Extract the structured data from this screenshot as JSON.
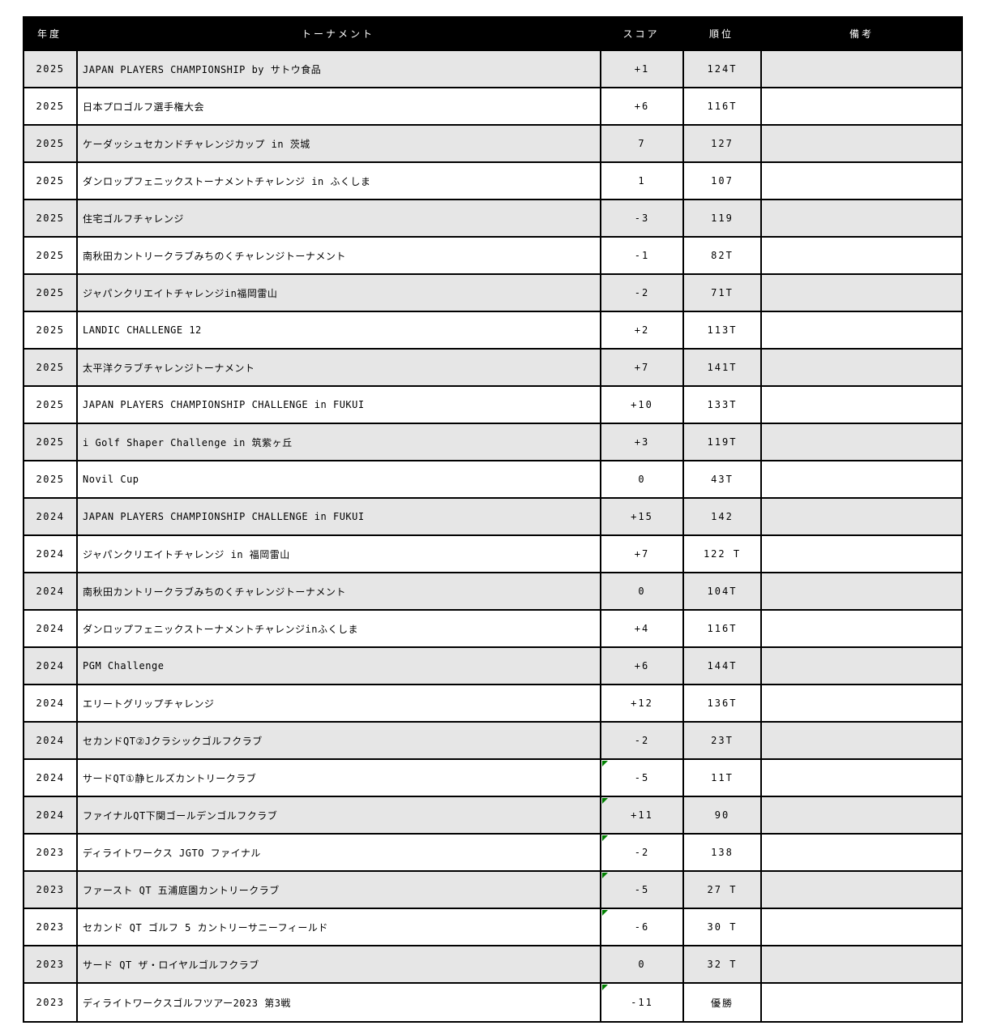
{
  "colors": {
    "header_bg": "#000000",
    "header_text": "#ffffff",
    "row_stripe": "#e6e6e6",
    "grid_border": "#000000",
    "comment_flag_green": "#008000"
  },
  "header": {
    "year": "年度",
    "tournament": "トーナメント",
    "score": "スコア",
    "rank": "順位",
    "notes": "備考"
  },
  "rows": [
    {
      "year": "2025",
      "tournament": "JAPAN PLAYERS CHAMPIONSHIP by サトウ食品",
      "score": "+1",
      "rank": "124T",
      "notes": "",
      "flag": false
    },
    {
      "year": "2025",
      "tournament": "日本プロゴルフ選手権大会",
      "score": "+6",
      "rank": "116T",
      "notes": "",
      "flag": false
    },
    {
      "year": "2025",
      "tournament": "ケーダッシュセカンドチャレンジカップ in 茨城",
      "score": "7",
      "rank": "127",
      "notes": "",
      "flag": false
    },
    {
      "year": "2025",
      "tournament": "ダンロップフェニックストーナメントチャレンジ in ふくしま",
      "score": "1",
      "rank": "107",
      "notes": "",
      "flag": false
    },
    {
      "year": "2025",
      "tournament": "住宅ゴルフチャレンジ",
      "score": "-3",
      "rank": "119",
      "notes": "",
      "flag": false
    },
    {
      "year": "2025",
      "tournament": "南秋田カントリークラブみちのくチャレンジトーナメント",
      "score": "-1",
      "rank": "82T",
      "notes": "",
      "flag": false
    },
    {
      "year": "2025",
      "tournament": "ジャパンクリエイトチャレンジin福岡雷山",
      "score": "-2",
      "rank": "71T",
      "notes": "",
      "flag": false
    },
    {
      "year": "2025",
      "tournament": "LANDIC CHALLENGE 12",
      "score": "+2",
      "rank": "113T",
      "notes": "",
      "flag": false
    },
    {
      "year": "2025",
      "tournament": "太平洋クラブチャレンジトーナメント",
      "score": "+7",
      "rank": "141T",
      "notes": "",
      "flag": false
    },
    {
      "year": "2025",
      "tournament": "JAPAN PLAYERS CHAMPIONSHIP CHALLENGE in FUKUI",
      "score": "+10",
      "rank": "133T",
      "notes": "",
      "flag": false
    },
    {
      "year": "2025",
      "tournament": "i Golf Shaper Challenge in 筑紫ヶ丘",
      "score": "+3",
      "rank": "119T",
      "notes": "",
      "flag": false
    },
    {
      "year": "2025",
      "tournament": "Novil Cup",
      "score": "0",
      "rank": "43T",
      "notes": "",
      "flag": false
    },
    {
      "year": "2024",
      "tournament": "JAPAN PLAYERS CHAMPIONSHIP CHALLENGE in FUKUI",
      "score": "+15",
      "rank": "142",
      "notes": "",
      "flag": false
    },
    {
      "year": "2024",
      "tournament": "ジャパンクリエイトチャレンジ in 福岡雷山",
      "score": "+7",
      "rank": "122 T",
      "notes": "",
      "flag": false
    },
    {
      "year": "2024",
      "tournament": "南秋田カントリークラブみちのくチャレンジトーナメント",
      "score": "0",
      "rank": "104T",
      "notes": "",
      "flag": false
    },
    {
      "year": "2024",
      "tournament": "ダンロップフェニックストーナメントチャレンジinふくしま",
      "score": "+4",
      "rank": "116T",
      "notes": "",
      "flag": false
    },
    {
      "year": "2024",
      "tournament": "PGM Challenge",
      "score": "+6",
      "rank": "144T",
      "notes": "",
      "flag": false
    },
    {
      "year": "2024",
      "tournament": "エリートグリップチャレンジ",
      "score": "+12",
      "rank": "136T",
      "notes": "",
      "flag": false
    },
    {
      "year": "2024",
      "tournament": "セカンドQT②Jクラシックゴルフクラブ",
      "score": "-2",
      "rank": "23T",
      "notes": "",
      "flag": false
    },
    {
      "year": "2024",
      "tournament": "サードQT①静ヒルズカントリークラブ",
      "score": "-5",
      "rank": "11T",
      "notes": "",
      "flag": true
    },
    {
      "year": "2024",
      "tournament": "ファイナルQT下関ゴールデンゴルフクラブ",
      "score": "+11",
      "rank": "90",
      "notes": "",
      "flag": true
    },
    {
      "year": "2023",
      "tournament": "ディライトワークス JGTO ファイナル",
      "score": "-2",
      "rank": "138",
      "notes": "",
      "flag": true
    },
    {
      "year": "2023",
      "tournament": "ファースト QT 五浦庭園カントリークラブ",
      "score": "-5",
      "rank": "27 T",
      "notes": "",
      "flag": true
    },
    {
      "year": "2023",
      "tournament": "セカンド QT ゴルフ 5 カントリーサニーフィールド",
      "score": "-6",
      "rank": "30 T",
      "notes": "",
      "flag": true
    },
    {
      "year": "2023",
      "tournament": "サード QT ザ・ロイヤルゴルフクラブ",
      "score": "0",
      "rank": "32 T",
      "notes": "",
      "flag": false
    },
    {
      "year": "2023",
      "tournament": "ディライトワークスゴルフツアー2023 第3戦",
      "score": "-11",
      "rank": "優勝",
      "notes": "",
      "flag": true
    }
  ]
}
